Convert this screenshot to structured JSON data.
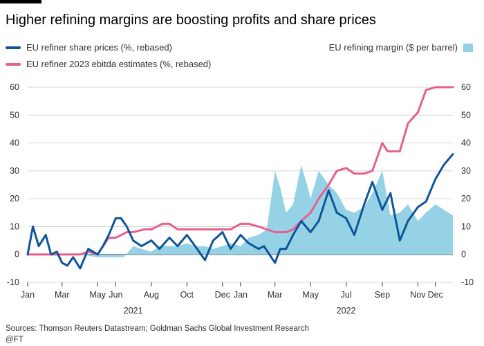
{
  "title": "Higher refining margins are boosting profits and share prices",
  "legend": {
    "share_prices": "EU refiner share prices (%, rebased)",
    "ebitda": "EU refiner 2023 ebitda estimates (%, rebased)",
    "margin": "EU refining margin ($ per barrel)"
  },
  "source": "Sources: Thomson Reuters Datastream; Goldman Sachs Global Investment Research",
  "credit": "@FT",
  "colors": {
    "share_prices": "#0f5499",
    "ebitda": "#e6608f",
    "margin": "#96d2e6",
    "grid": "#d6d5d4",
    "zero": "#33302e"
  },
  "chart_data": {
    "type": "line",
    "xlim": [
      "2021-01-01",
      "2022-12-31"
    ],
    "ylim": [
      -10,
      62
    ],
    "yticks": [
      -10,
      0,
      10,
      20,
      30,
      40,
      50,
      60
    ],
    "right_yticks": [
      -10,
      0,
      10,
      20,
      30,
      40,
      50,
      60
    ],
    "xtick_labels": [
      "Jan",
      "Mar",
      "May",
      "Jun",
      "Aug",
      "Oct",
      "Dec",
      "Jan",
      "Mar",
      "May",
      "Jul",
      "Sep",
      "Nov",
      "Dec"
    ],
    "xtick_dates": [
      "2021-01-01",
      "2021-03-01",
      "2021-05-01",
      "2021-06-01",
      "2021-08-01",
      "2021-10-01",
      "2021-12-01",
      "2022-01-01",
      "2022-03-01",
      "2022-05-01",
      "2022-07-01",
      "2022-09-01",
      "2022-11-01",
      "2022-12-01"
    ],
    "year_labels": [
      {
        "label": "2021",
        "date": "2021-07-01"
      },
      {
        "label": "2022",
        "date": "2022-07-01"
      }
    ],
    "grid": true,
    "series": [
      {
        "name": "EU refining margin ($ per barrel)",
        "kind": "area",
        "points": [
          [
            "2021-01-01",
            0
          ],
          [
            "2021-02-01",
            0
          ],
          [
            "2021-03-01",
            0
          ],
          [
            "2021-04-01",
            0
          ],
          [
            "2021-05-01",
            -1
          ],
          [
            "2021-05-20",
            -1
          ],
          [
            "2021-06-01",
            -1
          ],
          [
            "2021-06-15",
            -1
          ],
          [
            "2021-07-01",
            3
          ],
          [
            "2021-07-15",
            2
          ],
          [
            "2021-08-01",
            1
          ],
          [
            "2021-08-15",
            3
          ],
          [
            "2021-09-01",
            3
          ],
          [
            "2021-09-15",
            3
          ],
          [
            "2021-10-01",
            4
          ],
          [
            "2021-10-15",
            3
          ],
          [
            "2021-11-01",
            3
          ],
          [
            "2021-11-15",
            2
          ],
          [
            "2021-12-01",
            3
          ],
          [
            "2021-12-15",
            4
          ],
          [
            "2022-01-01",
            3
          ],
          [
            "2022-01-15",
            6
          ],
          [
            "2022-02-01",
            7
          ],
          [
            "2022-02-15",
            9
          ],
          [
            "2022-03-01",
            30
          ],
          [
            "2022-03-10",
            24
          ],
          [
            "2022-03-20",
            15
          ],
          [
            "2022-04-01",
            18
          ],
          [
            "2022-04-15",
            32
          ],
          [
            "2022-04-25",
            25
          ],
          [
            "2022-05-01",
            20
          ],
          [
            "2022-05-15",
            30
          ],
          [
            "2022-06-01",
            25
          ],
          [
            "2022-06-15",
            22
          ],
          [
            "2022-07-01",
            16
          ],
          [
            "2022-07-15",
            15
          ],
          [
            "2022-08-01",
            17
          ],
          [
            "2022-08-15",
            22
          ],
          [
            "2022-09-01",
            30
          ],
          [
            "2022-09-15",
            14
          ],
          [
            "2022-10-01",
            15
          ],
          [
            "2022-10-15",
            18
          ],
          [
            "2022-11-01",
            12
          ],
          [
            "2022-11-15",
            15
          ],
          [
            "2022-12-01",
            18
          ],
          [
            "2022-12-31",
            14
          ]
        ]
      },
      {
        "name": "EU refiner 2023 ebitda estimates (%, rebased)",
        "kind": "line",
        "points": [
          [
            "2021-01-01",
            0
          ],
          [
            "2021-02-01",
            0
          ],
          [
            "2021-03-01",
            0
          ],
          [
            "2021-04-01",
            0
          ],
          [
            "2021-04-15",
            1
          ],
          [
            "2021-05-01",
            0
          ],
          [
            "2021-05-20",
            6
          ],
          [
            "2021-06-01",
            6
          ],
          [
            "2021-06-20",
            8
          ],
          [
            "2021-07-01",
            8
          ],
          [
            "2021-07-20",
            9
          ],
          [
            "2021-08-01",
            9
          ],
          [
            "2021-08-20",
            11
          ],
          [
            "2021-09-01",
            11
          ],
          [
            "2021-09-15",
            9
          ],
          [
            "2021-10-01",
            9
          ],
          [
            "2021-11-01",
            9
          ],
          [
            "2021-12-01",
            9
          ],
          [
            "2021-12-15",
            9
          ],
          [
            "2022-01-01",
            11
          ],
          [
            "2022-01-15",
            11
          ],
          [
            "2022-02-01",
            10
          ],
          [
            "2022-03-01",
            8
          ],
          [
            "2022-03-20",
            8
          ],
          [
            "2022-04-01",
            9
          ],
          [
            "2022-04-15",
            12
          ],
          [
            "2022-05-01",
            15
          ],
          [
            "2022-05-15",
            20
          ],
          [
            "2022-06-01",
            25
          ],
          [
            "2022-06-15",
            30
          ],
          [
            "2022-07-01",
            31
          ],
          [
            "2022-07-15",
            29
          ],
          [
            "2022-08-01",
            29
          ],
          [
            "2022-08-15",
            30
          ],
          [
            "2022-09-01",
            40
          ],
          [
            "2022-09-10",
            37
          ],
          [
            "2022-09-20",
            37
          ],
          [
            "2022-10-01",
            37
          ],
          [
            "2022-10-15",
            47
          ],
          [
            "2022-11-01",
            51
          ],
          [
            "2022-11-15",
            59
          ],
          [
            "2022-12-01",
            60
          ],
          [
            "2022-12-31",
            60
          ]
        ]
      },
      {
        "name": "EU refiner share prices (%, rebased)",
        "kind": "line",
        "points": [
          [
            "2021-01-01",
            0
          ],
          [
            "2021-01-10",
            10
          ],
          [
            "2021-01-20",
            3
          ],
          [
            "2021-02-01",
            7
          ],
          [
            "2021-02-10",
            0
          ],
          [
            "2021-02-20",
            1
          ],
          [
            "2021-03-01",
            -3
          ],
          [
            "2021-03-10",
            -4
          ],
          [
            "2021-03-20",
            -1
          ],
          [
            "2021-04-01",
            -5
          ],
          [
            "2021-04-15",
            2
          ],
          [
            "2021-05-01",
            0
          ],
          [
            "2021-05-10",
            3
          ],
          [
            "2021-05-20",
            7
          ],
          [
            "2021-06-01",
            13
          ],
          [
            "2021-06-10",
            13
          ],
          [
            "2021-06-20",
            10
          ],
          [
            "2021-07-01",
            5
          ],
          [
            "2021-07-15",
            3
          ],
          [
            "2021-08-01",
            5
          ],
          [
            "2021-08-15",
            2
          ],
          [
            "2021-09-01",
            6
          ],
          [
            "2021-09-15",
            3
          ],
          [
            "2021-10-01",
            7
          ],
          [
            "2021-10-15",
            3
          ],
          [
            "2021-11-01",
            -2
          ],
          [
            "2021-11-15",
            5
          ],
          [
            "2021-12-01",
            8
          ],
          [
            "2021-12-15",
            2
          ],
          [
            "2022-01-01",
            7
          ],
          [
            "2022-01-15",
            4
          ],
          [
            "2022-02-01",
            2
          ],
          [
            "2022-02-10",
            3
          ],
          [
            "2022-03-01",
            -3
          ],
          [
            "2022-03-10",
            2
          ],
          [
            "2022-03-20",
            2
          ],
          [
            "2022-04-01",
            7
          ],
          [
            "2022-04-15",
            12
          ],
          [
            "2022-05-01",
            8
          ],
          [
            "2022-05-15",
            12
          ],
          [
            "2022-06-01",
            23
          ],
          [
            "2022-06-15",
            15
          ],
          [
            "2022-07-01",
            13
          ],
          [
            "2022-07-15",
            7
          ],
          [
            "2022-08-01",
            18
          ],
          [
            "2022-08-15",
            26
          ],
          [
            "2022-09-01",
            16
          ],
          [
            "2022-09-15",
            22
          ],
          [
            "2022-10-01",
            5
          ],
          [
            "2022-10-15",
            12
          ],
          [
            "2022-11-01",
            17
          ],
          [
            "2022-11-15",
            19
          ],
          [
            "2022-12-01",
            27
          ],
          [
            "2022-12-15",
            32
          ],
          [
            "2022-12-31",
            36
          ]
        ]
      }
    ]
  }
}
